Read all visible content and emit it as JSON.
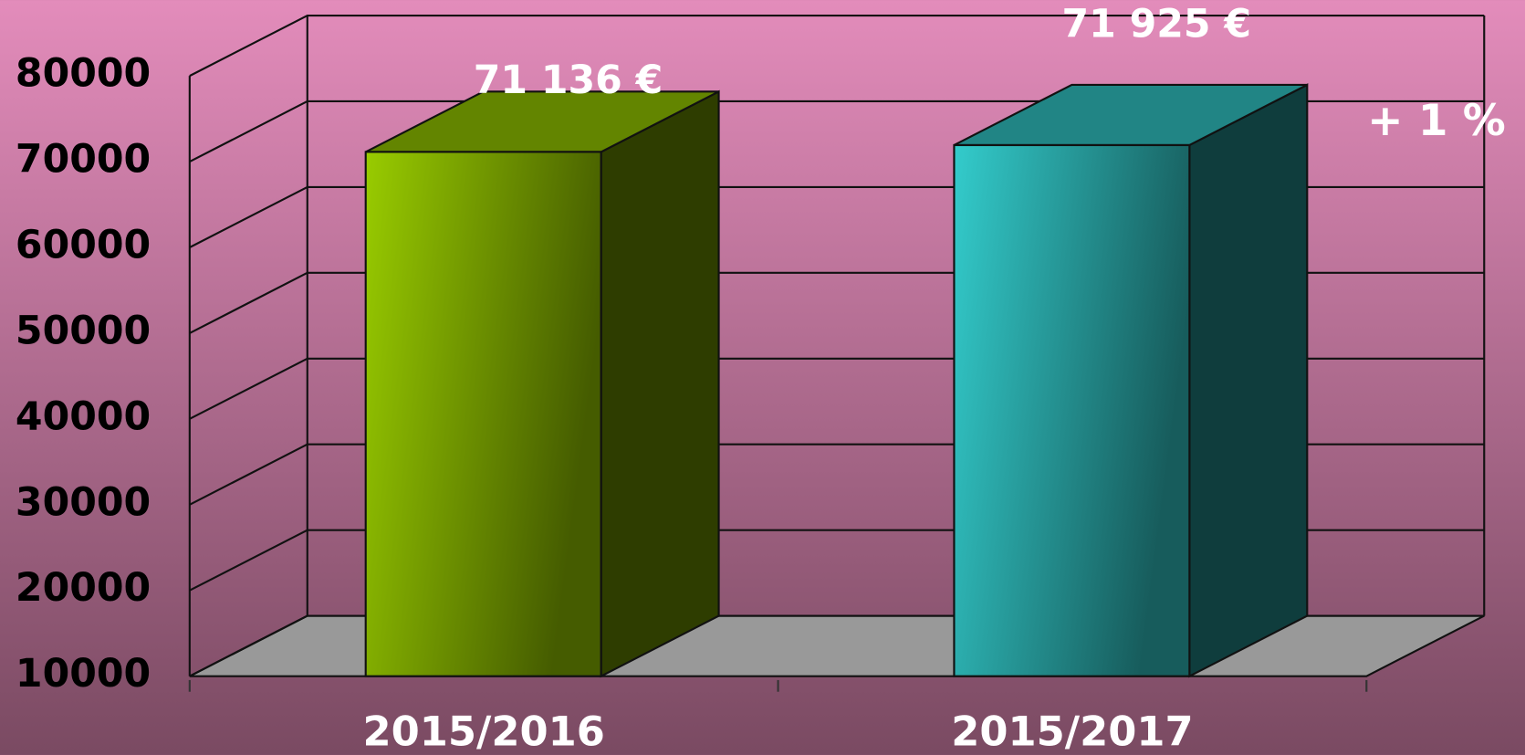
{
  "chart_data": {
    "type": "bar3d",
    "categories": [
      "2015/2016",
      "2015/2017"
    ],
    "values": [
      71136,
      71925
    ],
    "value_labels": [
      "71 136 €",
      "71 925 €"
    ],
    "colors": [
      "#99cc00",
      "#33cccc"
    ],
    "ylim": [
      10000,
      80000
    ],
    "yticks": [
      10000,
      20000,
      30000,
      40000,
      50000,
      60000,
      70000,
      80000
    ],
    "grid": true,
    "annotation": "+ 1 %"
  }
}
